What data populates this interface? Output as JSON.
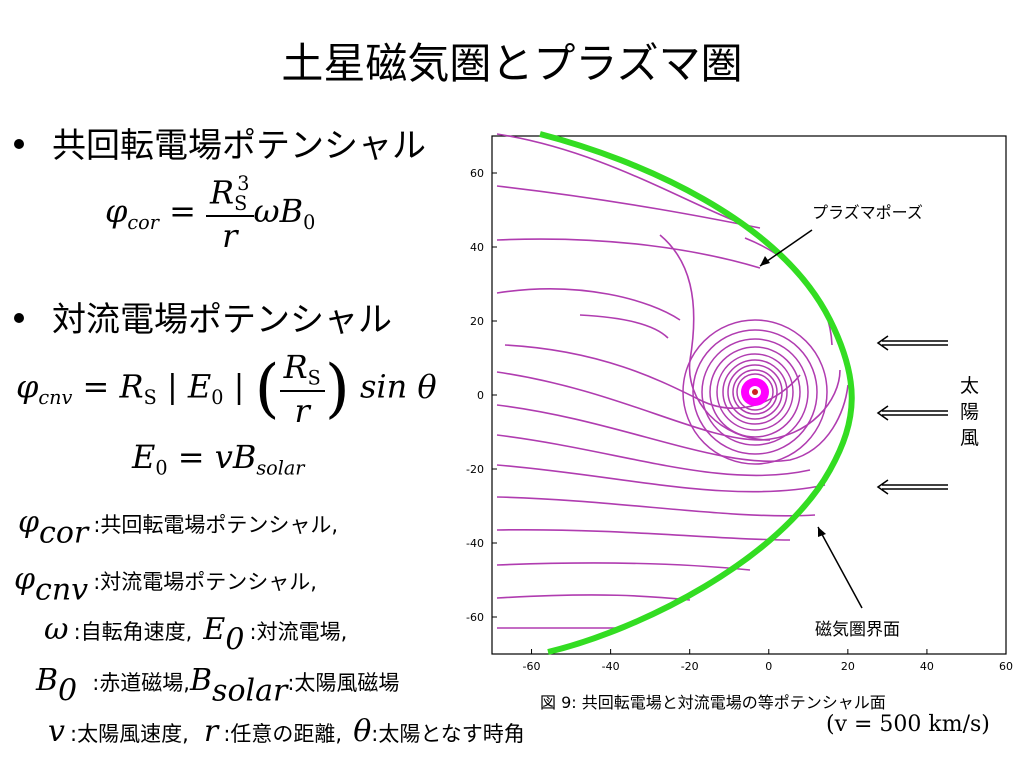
{
  "title": "土星磁気圏とプラズマ圏",
  "bullets": [
    {
      "label": "共回転電場ポテンシャル"
    },
    {
      "label": "対流電場ポテンシャル"
    }
  ],
  "formulas": {
    "phi": "φ",
    "cor": "cor",
    "cnv": "cnv",
    "equals": "=",
    "R": "R",
    "S": "S",
    "cube": "3",
    "r": "r",
    "omega_B0": "ωB",
    "zero": "0",
    "bar": "|",
    "E": "E",
    "sin_theta": "sin θ",
    "E0_eq": "= vB",
    "solar": "solar"
  },
  "legend": [
    {
      "desc": "共回転電場ポテンシャル,"
    },
    {
      "desc": "対流電場ポテンシャル,"
    },
    {
      "desc1": "自転角速度,",
      "desc2": "対流電場,"
    },
    {
      "desc1": "赤道磁場,",
      "desc2": "太陽風磁場"
    },
    {
      "desc1": "太陽風速度,",
      "desc2": "任意の距離,",
      "desc3": "太陽となす時角"
    }
  ],
  "legend_symbols": {
    "omega": "ω",
    "E": "E",
    "B": "B",
    "v": "v",
    "r": "r",
    "theta": "θ",
    "zero": "0",
    "solar": "solar",
    "colon": ":"
  },
  "figure": {
    "label_plasmapause": "プラズマポーズ",
    "label_magnetopause": "磁気圏界面",
    "label_solar_wind": [
      "太",
      "陽",
      "風"
    ],
    "x_ticks": [
      -60,
      -40,
      -20,
      0,
      20,
      40,
      60
    ],
    "y_ticks": [
      60,
      40,
      20,
      0,
      -20,
      -40,
      -60
    ],
    "x_range": [
      -70,
      60
    ],
    "y_range": [
      -70,
      70
    ],
    "caption": "図 9:  共回転電場と対流電場の等ポテンシャル面",
    "velocity_note": "(v = 500 km/s)",
    "colors": {
      "field_lines": "#b03cb0",
      "magnetopause": "#33dd22",
      "planet": "#ff00ff",
      "frame": "#000000"
    }
  }
}
